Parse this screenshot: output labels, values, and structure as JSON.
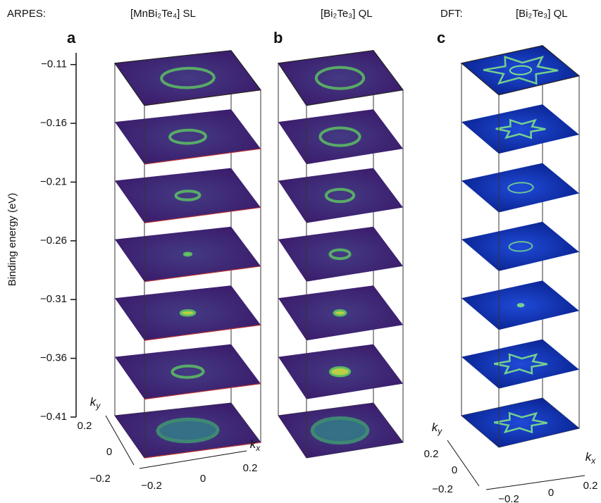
{
  "headers": {
    "arpes": "ARPES:",
    "a": "[MnBi₂Te₄] SL",
    "b": "[Bi₂Te₃] QL",
    "dft": "DFT:",
    "c": "[Bi₂Te₃] QL"
  },
  "panel_labels": [
    "a",
    "b",
    "c"
  ],
  "energy_axis": {
    "label": "Binding energy (eV)",
    "lim": [
      -0.41,
      -0.1
    ],
    "ticks": [
      {
        "value": -0.11,
        "label": "−0.11"
      },
      {
        "value": -0.16,
        "label": "−0.16"
      },
      {
        "value": -0.21,
        "label": "−0.21"
      },
      {
        "value": -0.26,
        "label": "−0.26"
      },
      {
        "value": -0.31,
        "label": "−0.31"
      },
      {
        "value": -0.36,
        "label": "−0.36"
      },
      {
        "value": -0.41,
        "label": "−0.41"
      }
    ]
  },
  "k_axes": {
    "a": {
      "ky": [
        "k",
        "y"
      ],
      "kx": [
        "k",
        "x"
      ],
      "ky_ticks": [
        "0.2",
        "0",
        "−0.2"
      ],
      "kx_ticks": [
        "−0.2",
        "0",
        "0.2"
      ]
    },
    "c": {
      "ky": [
        "k",
        "y"
      ],
      "kx": [
        "k",
        "x"
      ],
      "ky_ticks": [
        "0.2",
        "0",
        "−0.2"
      ],
      "kx_ticks": [
        "−0.2",
        "0",
        "0.2"
      ]
    }
  }
}
